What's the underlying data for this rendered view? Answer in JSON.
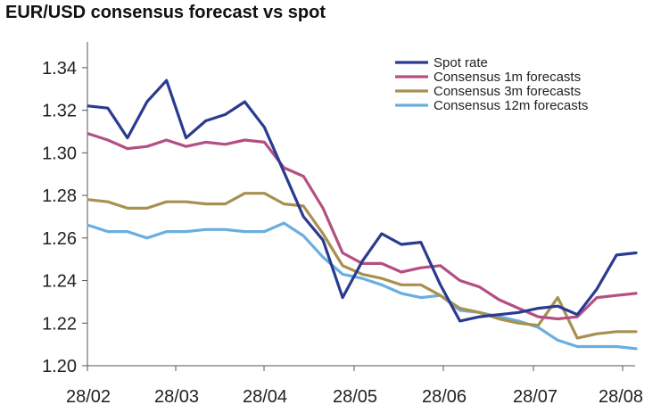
{
  "chart_data": {
    "type": "line",
    "title": "EUR/USD consensus forecast vs spot",
    "xlabel": "",
    "ylabel": "",
    "x_tick_labels": [
      "28/02",
      "28/03",
      "28/04",
      "28/05",
      "28/06",
      "28/07",
      "28/08"
    ],
    "ylim": [
      1.2,
      1.35
    ],
    "y_ticks": [
      "1.20",
      "1.22",
      "1.24",
      "1.26",
      "1.28",
      "1.30",
      "1.32",
      "1.34"
    ],
    "grid": false,
    "legend_position": "top-right",
    "series": [
      {
        "name": "Spot rate",
        "color": "#2a3b8f",
        "values": [
          1.322,
          1.321,
          1.307,
          1.324,
          1.334,
          1.307,
          1.315,
          1.318,
          1.324,
          1.312,
          1.291,
          1.27,
          1.259,
          1.232,
          1.249,
          1.262,
          1.257,
          1.258,
          1.238,
          1.221,
          1.223,
          1.224,
          1.225,
          1.227,
          1.228,
          1.224,
          1.236,
          1.252,
          1.253
        ]
      },
      {
        "name": "Consensus 1m forecasts",
        "color": "#b44f84",
        "values": [
          1.309,
          1.306,
          1.302,
          1.303,
          1.306,
          1.303,
          1.305,
          1.304,
          1.306,
          1.305,
          1.293,
          1.289,
          1.274,
          1.253,
          1.248,
          1.248,
          1.244,
          1.246,
          1.247,
          1.24,
          1.237,
          1.231,
          1.227,
          1.223,
          1.222,
          1.223,
          1.232,
          1.233,
          1.234
        ]
      },
      {
        "name": "Consensus 3m forecasts",
        "color": "#a89050",
        "values": [
          1.278,
          1.277,
          1.274,
          1.274,
          1.277,
          1.277,
          1.276,
          1.276,
          1.281,
          1.281,
          1.276,
          1.275,
          1.262,
          1.247,
          1.243,
          1.241,
          1.238,
          1.238,
          1.233,
          1.227,
          1.225,
          1.222,
          1.22,
          1.219,
          1.232,
          1.213,
          1.215,
          1.216,
          1.216
        ]
      },
      {
        "name": "Consensus 12m forecasts",
        "color": "#6aaee0",
        "values": [
          1.266,
          1.263,
          1.263,
          1.26,
          1.263,
          1.263,
          1.264,
          1.264,
          1.263,
          1.263,
          1.267,
          1.261,
          1.251,
          1.243,
          1.241,
          1.238,
          1.234,
          1.232,
          1.233,
          1.226,
          1.225,
          1.223,
          1.221,
          1.218,
          1.212,
          1.209,
          1.209,
          1.209,
          1.208
        ]
      }
    ]
  }
}
